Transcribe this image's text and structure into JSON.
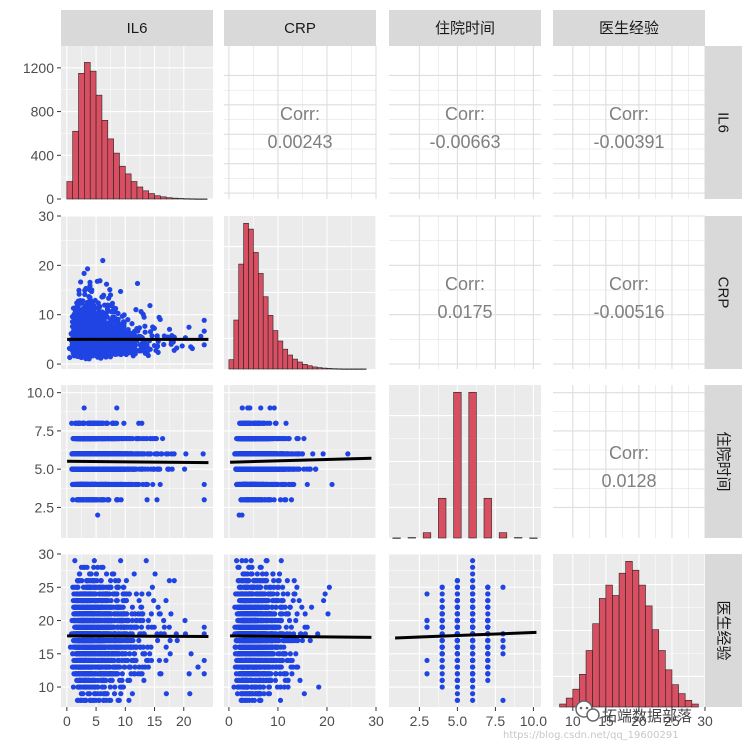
{
  "chart_data": {
    "type": "pairs",
    "variables": [
      "IL6",
      "CRP",
      "住院时间",
      "医生经验"
    ],
    "axes": {
      "IL6": {
        "range": [
          -1,
          25
        ],
        "ticks": [
          0,
          5,
          10,
          15,
          20
        ],
        "tick_labels": [
          "0",
          "5",
          "10",
          "15",
          "20"
        ]
      },
      "CRP": {
        "range": [
          -1,
          30
        ],
        "ticks": [
          0,
          10,
          20,
          30
        ],
        "tick_labels": [
          "0",
          "10",
          "20",
          "30"
        ]
      },
      "住院时间": {
        "range": [
          0.5,
          10.5
        ],
        "ticks": [
          2.5,
          5.0,
          7.5,
          10.0
        ],
        "tick_labels": [
          "2.5",
          "5.0",
          "7.5",
          "10.0"
        ]
      },
      "医生经验": {
        "range": [
          7,
          30
        ],
        "ticks": [
          10,
          15,
          20,
          25,
          30
        ],
        "tick_labels": [
          "10",
          "15",
          "20",
          "25",
          "30"
        ]
      }
    },
    "first_panel_count_axis": {
      "range": [
        0,
        1400
      ],
      "ticks": [
        0,
        400,
        800,
        1200
      ],
      "tick_labels": [
        "0",
        "400",
        "800",
        "1200"
      ]
    },
    "histograms": {
      "IL6": {
        "bin_width": 1,
        "centers": [
          0.5,
          1.5,
          2.5,
          3.5,
          4.5,
          5.5,
          6.5,
          7.5,
          8.5,
          9.5,
          10.5,
          11.5,
          12.5,
          13.5,
          14.5,
          15.5,
          16.5,
          17.5,
          18.5,
          19.5,
          20.5,
          21.5,
          22.5,
          23.5
        ],
        "counts": [
          160,
          620,
          1150,
          1250,
          1170,
          950,
          720,
          550,
          420,
          300,
          230,
          160,
          110,
          75,
          50,
          30,
          20,
          12,
          8,
          5,
          3,
          2,
          1,
          1
        ]
      },
      "CRP": {
        "bin_width": 1,
        "centers": [
          0.5,
          1.5,
          2.5,
          3.5,
          4.5,
          5.5,
          6.5,
          7.5,
          8.5,
          9.5,
          10.5,
          11.5,
          12.5,
          13.5,
          14.5,
          15.5,
          16.5,
          17.5,
          18.5,
          19.5,
          20.5,
          21.5,
          22.5,
          23.5,
          24.5,
          25.5,
          26.5,
          27.5
        ],
        "counts": [
          80,
          420,
          900,
          1250,
          1200,
          1000,
          820,
          620,
          460,
          330,
          240,
          170,
          120,
          85,
          60,
          40,
          28,
          18,
          12,
          8,
          5,
          3,
          2,
          1,
          1,
          1,
          1,
          1
        ]
      },
      "住院时间": {
        "bin_width": 0.5,
        "centers": [
          1,
          2,
          3,
          4,
          5,
          6,
          7,
          8,
          9,
          10
        ],
        "counts": [
          1,
          5,
          60,
          450,
          1650,
          1650,
          450,
          60,
          5,
          1
        ]
      },
      "医生经验": {
        "bin_width": 1,
        "centers": [
          8.5,
          9.5,
          10.5,
          11.5,
          12.5,
          13.5,
          14.5,
          15.5,
          16.5,
          17.5,
          18.5,
          19.5,
          20.5,
          21.5,
          22.5,
          23.5,
          24.5,
          25.5,
          26.5,
          27.5,
          28.5
        ],
        "counts": [
          20,
          60,
          120,
          220,
          380,
          560,
          730,
          820,
          750,
          900,
          980,
          920,
          820,
          680,
          520,
          380,
          250,
          150,
          90,
          45,
          20
        ]
      }
    },
    "correlations": [
      {
        "row": "IL6",
        "col": "CRP",
        "label": "Corr:",
        "value": "0.00243"
      },
      {
        "row": "IL6",
        "col": "住院时间",
        "label": "Corr:",
        "value": "-0.00663"
      },
      {
        "row": "IL6",
        "col": "医生经验",
        "label": "Corr:",
        "value": "-0.00391"
      },
      {
        "row": "CRP",
        "col": "住院时间",
        "label": "Corr:",
        "value": "0.0175"
      },
      {
        "row": "CRP",
        "col": "医生经验",
        "label": "Corr:",
        "value": "-0.00516"
      },
      {
        "row": "住院时间",
        "col": "医生经验",
        "label": "Corr:",
        "value": "0.0128"
      }
    ],
    "scatter_fits": [
      {
        "x": "IL6",
        "y": "CRP",
        "intercept": 5.0,
        "slope": 0.0
      },
      {
        "x": "IL6",
        "y": "住院时间",
        "intercept": 5.52,
        "slope": -0.004
      },
      {
        "x": "CRP",
        "y": "住院时间",
        "intercept": 5.45,
        "slope": 0.009
      },
      {
        "x": "IL6",
        "y": "医生经验",
        "intercept": 17.7,
        "slope": -0.004
      },
      {
        "x": "CRP",
        "y": "医生经验",
        "intercept": 17.7,
        "slope": -0.008
      },
      {
        "x": "住院时间",
        "y": "医生经验",
        "intercept": 17.3,
        "slope": 0.09
      }
    ],
    "colors": {
      "bar_fill": "#d94f62",
      "bar_stroke": "#222222",
      "point": "#1f44e3",
      "fit_line": "#000000",
      "panel_bg": "#ebebeb",
      "strip_bg": "#d9d9d9"
    }
  },
  "watermark": {
    "brand": "拓端数据部落",
    "url": "https://blog.csdn.net/qq_19600291"
  }
}
